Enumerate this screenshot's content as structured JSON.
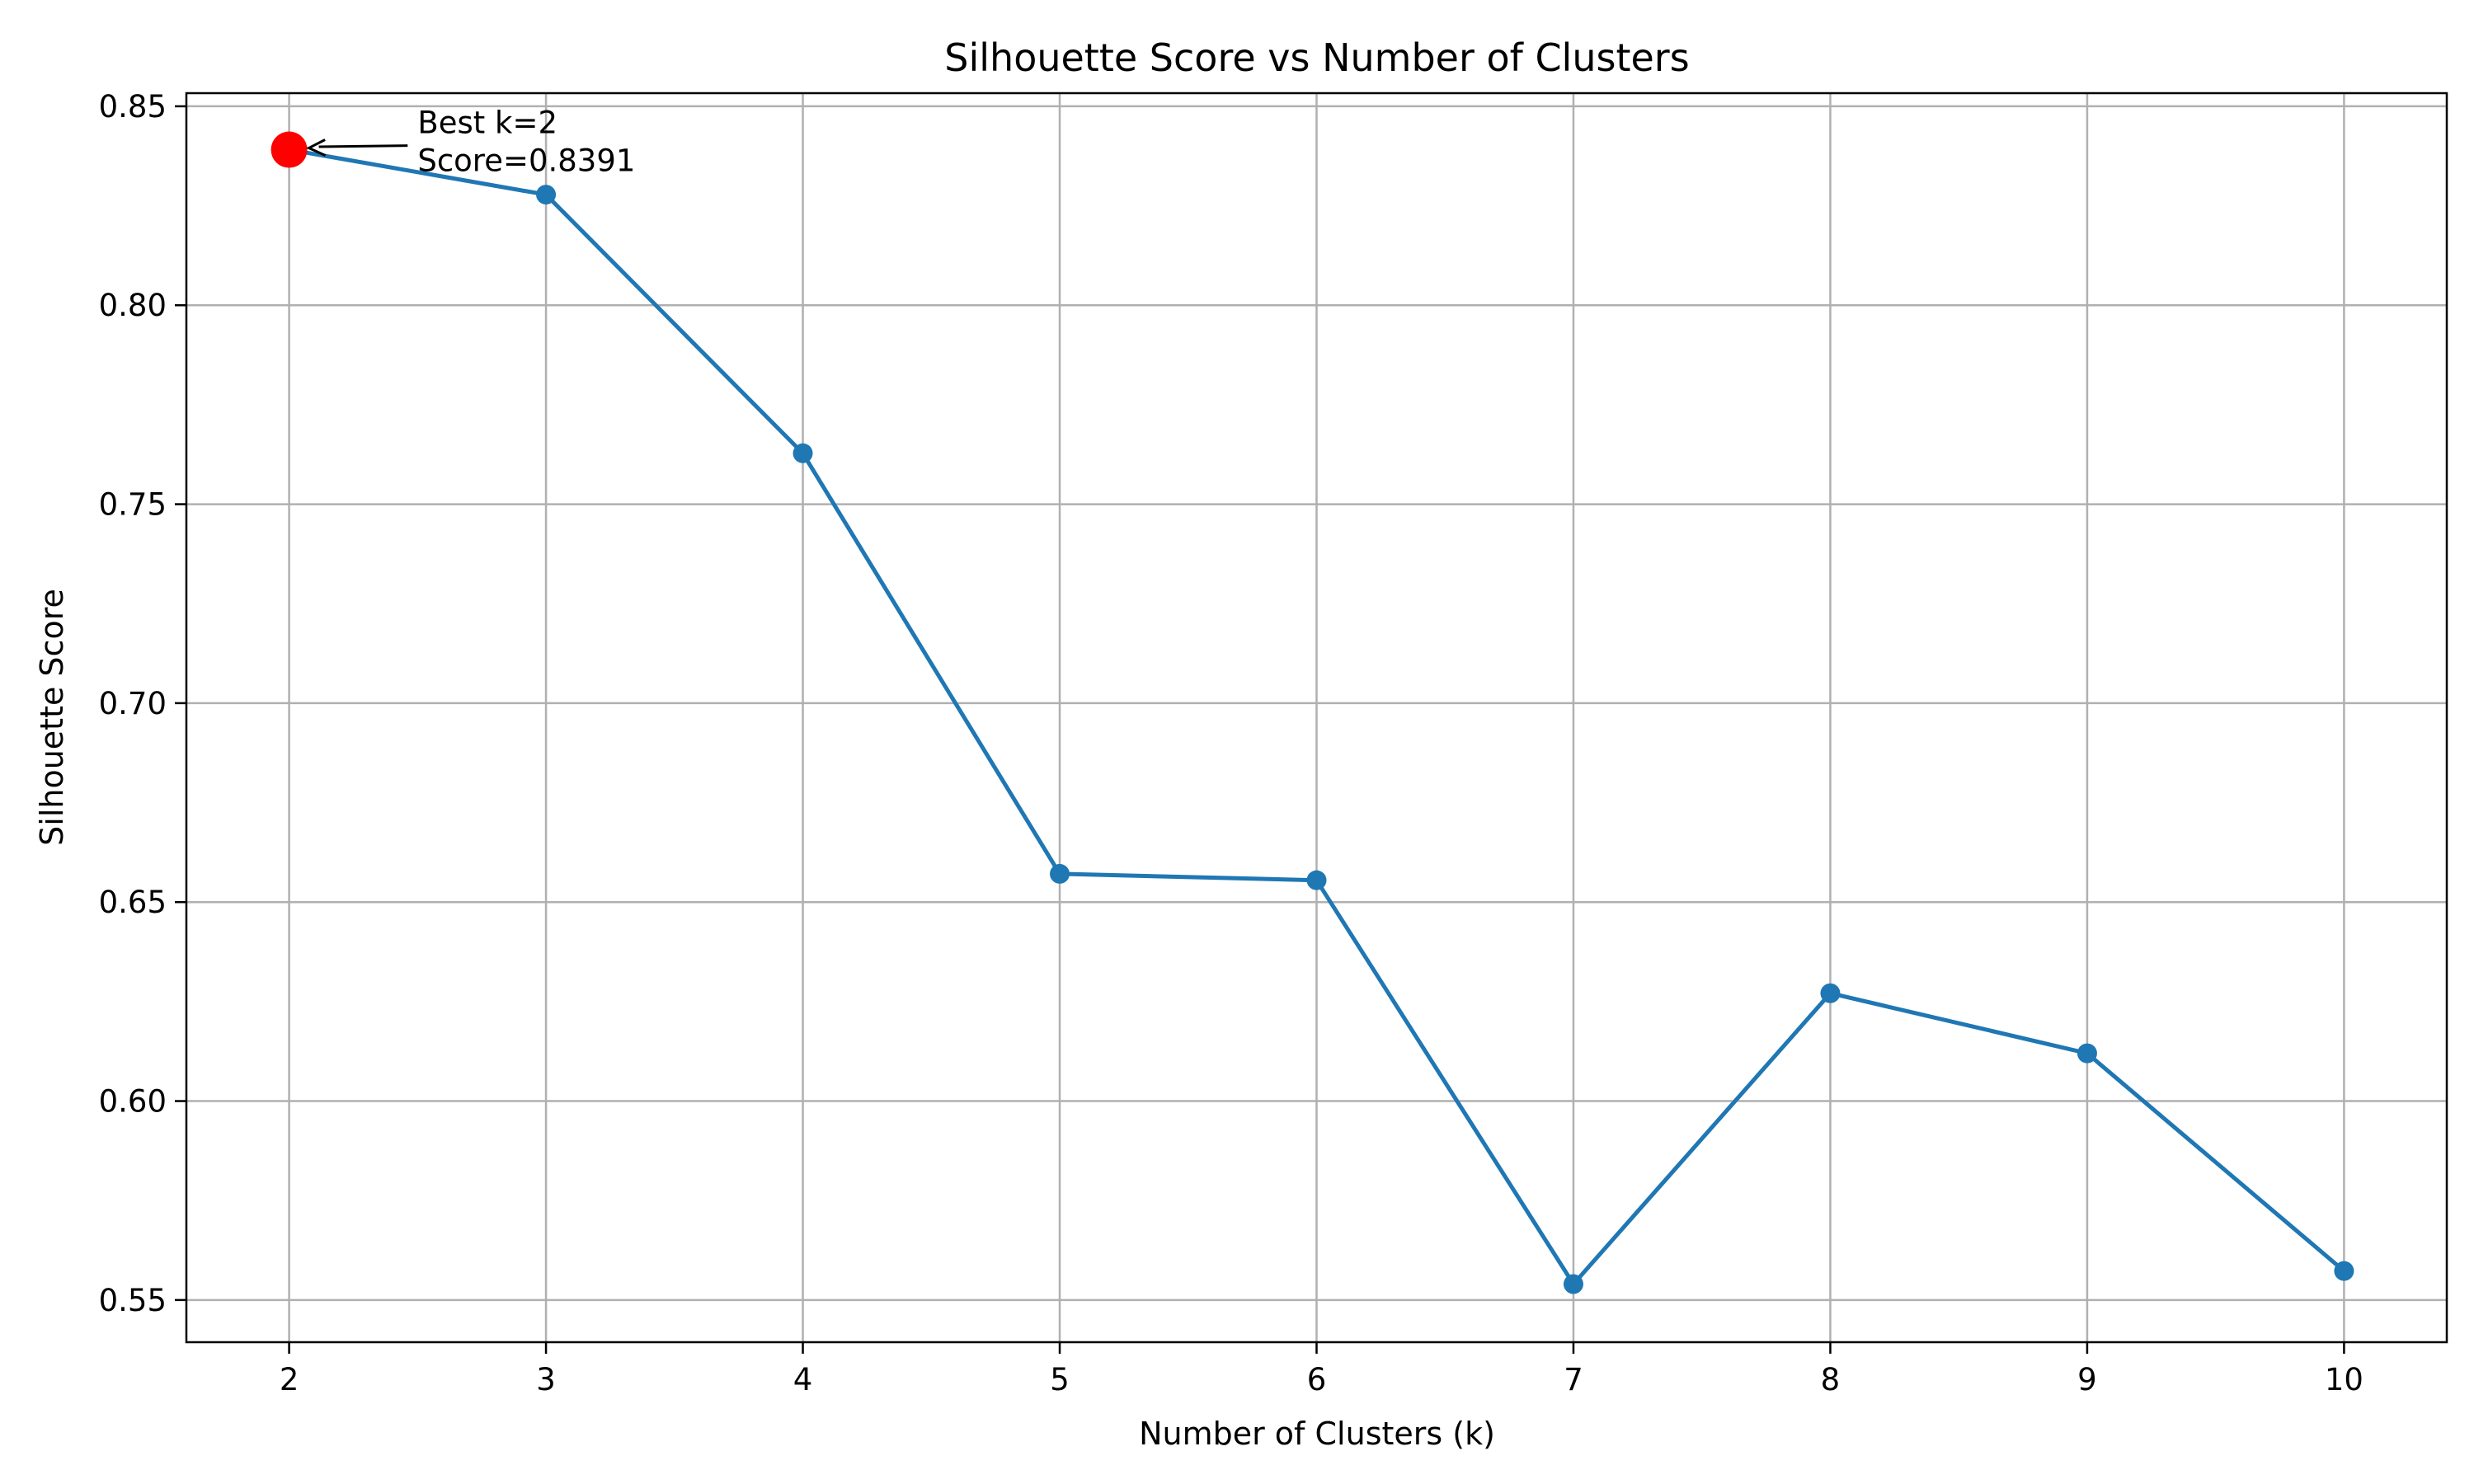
{
  "chart_data": {
    "type": "line",
    "title": "Silhouette Score vs Number of Clusters",
    "xlabel": "Number of Clusters (k)",
    "ylabel": "Silhouette Score",
    "x": [
      2,
      3,
      4,
      5,
      6,
      7,
      8,
      9,
      10
    ],
    "series": [
      {
        "values": [
          0.8391,
          0.8278,
          0.7628,
          0.6571,
          0.6555,
          0.554,
          0.6271,
          0.612,
          0.5573
        ],
        "color": "#1f77b4",
        "marker": "circle"
      }
    ],
    "xlim": [
      1.6,
      10.4
    ],
    "ylim": [
      0.5394,
      0.8533
    ],
    "xticks": [
      2,
      3,
      4,
      5,
      6,
      7,
      8,
      9,
      10
    ],
    "xtick_labels": [
      "2",
      "3",
      "4",
      "5",
      "6",
      "7",
      "8",
      "9",
      "10"
    ],
    "yticks": [
      0.55,
      0.6,
      0.65,
      0.7,
      0.75,
      0.8,
      0.85
    ],
    "ytick_labels": [
      "0.55",
      "0.60",
      "0.65",
      "0.70",
      "0.75",
      "0.80",
      "0.85"
    ],
    "grid": true,
    "highlight": {
      "x": 2,
      "y": 0.8391,
      "color": "#ff0000"
    },
    "annotation": {
      "lines": [
        "Best k=2",
        "Score=0.8391"
      ],
      "text_x": 2.5,
      "text_y": 0.8395
    }
  }
}
